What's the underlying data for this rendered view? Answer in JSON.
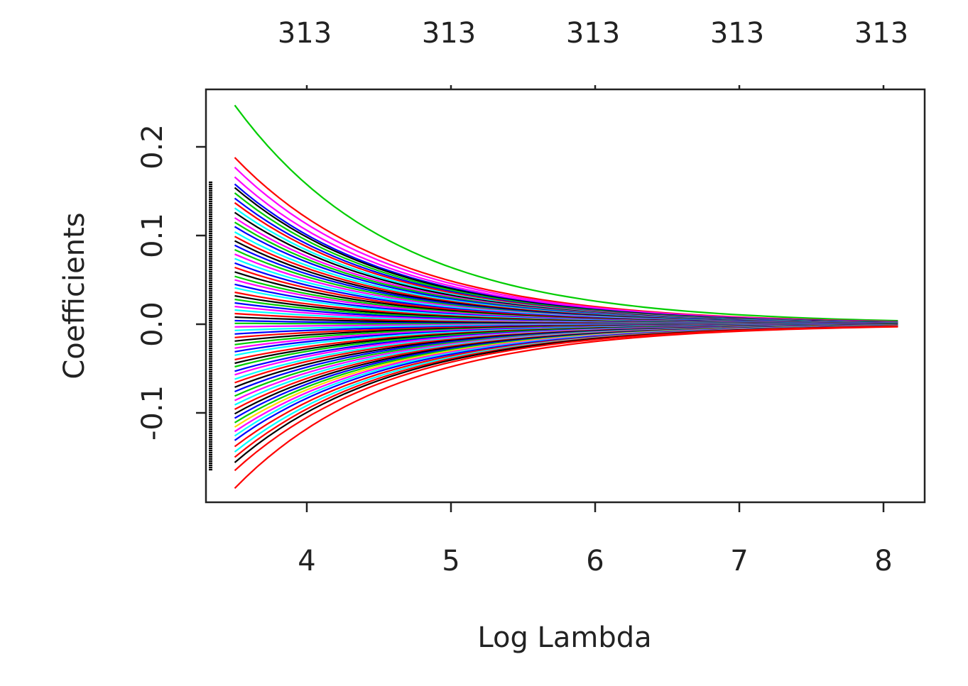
{
  "chart_data": {
    "type": "line",
    "title": "",
    "xlabel": "Log Lambda",
    "ylabel": "Coefficients",
    "xlim": [
      3.3,
      8.3
    ],
    "ylim": [
      -0.2,
      0.265
    ],
    "x_ticks": [
      4,
      5,
      6,
      7,
      8
    ],
    "x_tick_labels": [
      "4",
      "5",
      "6",
      "7",
      "8"
    ],
    "y_ticks": [
      -0.1,
      0.0,
      0.1,
      0.2
    ],
    "y_tick_labels": [
      "-0.1",
      "0.0",
      "0.1",
      "0.2"
    ],
    "top_axis": {
      "positions": [
        4,
        5,
        6,
        7,
        8
      ],
      "labels": [
        "313",
        "313",
        "313",
        "313",
        "313"
      ]
    },
    "grid": false,
    "legend": "none",
    "colors": [
      "#000000",
      "#ff0000",
      "#00cd00",
      "#0000ff",
      "#00ffff",
      "#ff00ff",
      "#ffd700",
      "#808080"
    ],
    "path_x_range": [
      3.5,
      8.1
    ],
    "path_shape": "exponential decay toward 0 as log lambda increases",
    "series": [
      {
        "color": "#00cd00",
        "start": 0.247
      },
      {
        "color": "#ff0000",
        "start": 0.188
      },
      {
        "color": "#ff00ff",
        "start": 0.177
      },
      {
        "color": "#ff00ff",
        "start": 0.166
      },
      {
        "color": "#0000ff",
        "start": 0.158
      },
      {
        "color": "#000000",
        "start": 0.154
      },
      {
        "color": "#00cd00",
        "start": 0.148
      },
      {
        "color": "#0000ff",
        "start": 0.142
      },
      {
        "color": "#ff0000",
        "start": 0.137
      },
      {
        "color": "#00ffff",
        "start": 0.131
      },
      {
        "color": "#000000",
        "start": 0.126
      },
      {
        "color": "#ff00ff",
        "start": 0.12
      },
      {
        "color": "#00cd00",
        "start": 0.115
      },
      {
        "color": "#0000ff",
        "start": 0.11
      },
      {
        "color": "#00ffff",
        "start": 0.104
      },
      {
        "color": "#ff0000",
        "start": 0.099
      },
      {
        "color": "#000000",
        "start": 0.094
      },
      {
        "color": "#0000ff",
        "start": 0.089
      },
      {
        "color": "#00cd00",
        "start": 0.084
      },
      {
        "color": "#ff00ff",
        "start": 0.079
      },
      {
        "color": "#00ffff",
        "start": 0.074
      },
      {
        "color": "#0000ff",
        "start": 0.069
      },
      {
        "color": "#ff0000",
        "start": 0.064
      },
      {
        "color": "#000000",
        "start": 0.059
      },
      {
        "color": "#00cd00",
        "start": 0.054
      },
      {
        "color": "#ff00ff",
        "start": 0.05
      },
      {
        "color": "#0000ff",
        "start": 0.045
      },
      {
        "color": "#00ffff",
        "start": 0.041
      },
      {
        "color": "#ff0000",
        "start": 0.036
      },
      {
        "color": "#000000",
        "start": 0.032
      },
      {
        "color": "#00cd00",
        "start": 0.028
      },
      {
        "color": "#0000ff",
        "start": 0.024
      },
      {
        "color": "#ff00ff",
        "start": 0.02
      },
      {
        "color": "#00ffff",
        "start": 0.016
      },
      {
        "color": "#ff0000",
        "start": 0.012
      },
      {
        "color": "#000000",
        "start": 0.008
      },
      {
        "color": "#0000ff",
        "start": 0.004
      },
      {
        "color": "#00cd00",
        "start": 0.001
      },
      {
        "color": "#ff00ff",
        "start": -0.003
      },
      {
        "color": "#00ffff",
        "start": -0.007
      },
      {
        "color": "#0000ff",
        "start": -0.011
      },
      {
        "color": "#ff0000",
        "start": -0.015
      },
      {
        "color": "#000000",
        "start": -0.019
      },
      {
        "color": "#00cd00",
        "start": -0.023
      },
      {
        "color": "#ff00ff",
        "start": -0.027
      },
      {
        "color": "#0000ff",
        "start": -0.031
      },
      {
        "color": "#00ffff",
        "start": -0.035
      },
      {
        "color": "#ff0000",
        "start": -0.04
      },
      {
        "color": "#000000",
        "start": -0.044
      },
      {
        "color": "#00cd00",
        "start": -0.048
      },
      {
        "color": "#0000ff",
        "start": -0.053
      },
      {
        "color": "#ff00ff",
        "start": -0.057
      },
      {
        "color": "#00ffff",
        "start": -0.062
      },
      {
        "color": "#ff0000",
        "start": -0.066
      },
      {
        "color": "#000000",
        "start": -0.071
      },
      {
        "color": "#0000ff",
        "start": -0.076
      },
      {
        "color": "#00cd00",
        "start": -0.081
      },
      {
        "color": "#ff00ff",
        "start": -0.086
      },
      {
        "color": "#00ffff",
        "start": -0.091
      },
      {
        "color": "#ff0000",
        "start": -0.096
      },
      {
        "color": "#000000",
        "start": -0.101
      },
      {
        "color": "#0000ff",
        "start": -0.106
      },
      {
        "color": "#00cd00",
        "start": -0.111
      },
      {
        "color": "#ffd700",
        "start": -0.116
      },
      {
        "color": "#ff00ff",
        "start": -0.121
      },
      {
        "color": "#00ffff",
        "start": -0.126
      },
      {
        "color": "#0000ff",
        "start": -0.131
      },
      {
        "color": "#ff0000",
        "start": -0.138
      },
      {
        "color": "#00ffff",
        "start": -0.144
      },
      {
        "color": "#ff0000",
        "start": -0.15
      },
      {
        "color": "#000000",
        "start": -0.156
      },
      {
        "color": "#ff0000",
        "start": -0.165
      },
      {
        "color": "#ff0000",
        "start": -0.185
      }
    ]
  }
}
